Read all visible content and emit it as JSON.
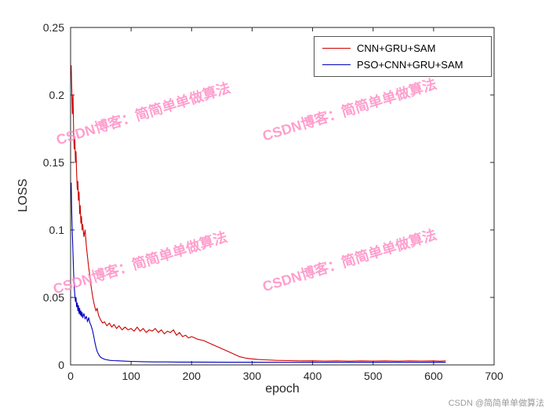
{
  "page": {
    "background": "#ffffff"
  },
  "watermark": {
    "text": "CSDN博客：简简单单做算法",
    "color": "#ff8fc6"
  },
  "credit": {
    "text": "CSDN @简简单单做算法",
    "color": "#9b9b9b"
  },
  "chart_data": {
    "type": "line",
    "title": "",
    "xlabel": "epoch",
    "ylabel": "LOSS",
    "xlim": [
      0,
      700
    ],
    "ylim": [
      0,
      0.25
    ],
    "xticks": [
      0,
      100,
      200,
      300,
      400,
      500,
      600,
      700
    ],
    "yticks": [
      0,
      0.05,
      0.1,
      0.15,
      0.2,
      0.25
    ],
    "ytick_labels": [
      "0",
      "0.05",
      "0.1",
      "0.15",
      "0.2",
      "0.25"
    ],
    "grid": false,
    "axis_color": "#262626",
    "legend": {
      "position": "top-right",
      "entries": [
        {
          "label": "CNN+GRU+SAM",
          "color": "#cd0000"
        },
        {
          "label": "PSO+CNN+GRU+SAM",
          "color": "#0000bb"
        }
      ]
    },
    "series": [
      {
        "name": "CNN+GRU+SAM",
        "color": "#cd0000",
        "points": [
          [
            1,
            0.222
          ],
          [
            2,
            0.205
          ],
          [
            3,
            0.186
          ],
          [
            4,
            0.2
          ],
          [
            5,
            0.172
          ],
          [
            6,
            0.16
          ],
          [
            7,
            0.168
          ],
          [
            8,
            0.15
          ],
          [
            9,
            0.158
          ],
          [
            10,
            0.142
          ],
          [
            11,
            0.13
          ],
          [
            12,
            0.136
          ],
          [
            13,
            0.122
          ],
          [
            14,
            0.128
          ],
          [
            15,
            0.112
          ],
          [
            16,
            0.118
          ],
          [
            17,
            0.105
          ],
          [
            18,
            0.11
          ],
          [
            19,
            0.1
          ],
          [
            20,
            0.104
          ],
          [
            22,
            0.095
          ],
          [
            24,
            0.1
          ],
          [
            26,
            0.088
          ],
          [
            28,
            0.08
          ],
          [
            30,
            0.072
          ],
          [
            32,
            0.066
          ],
          [
            34,
            0.058
          ],
          [
            36,
            0.052
          ],
          [
            38,
            0.047
          ],
          [
            40,
            0.043
          ],
          [
            42,
            0.04
          ],
          [
            44,
            0.042
          ],
          [
            46,
            0.037
          ],
          [
            48,
            0.035
          ],
          [
            50,
            0.033
          ],
          [
            53,
            0.031
          ],
          [
            56,
            0.032
          ],
          [
            60,
            0.029
          ],
          [
            64,
            0.031
          ],
          [
            68,
            0.028
          ],
          [
            72,
            0.03
          ],
          [
            76,
            0.027
          ],
          [
            80,
            0.029
          ],
          [
            85,
            0.026
          ],
          [
            90,
            0.028
          ],
          [
            95,
            0.026
          ],
          [
            100,
            0.027
          ],
          [
            105,
            0.025
          ],
          [
            110,
            0.028
          ],
          [
            115,
            0.025
          ],
          [
            120,
            0.027
          ],
          [
            125,
            0.024
          ],
          [
            130,
            0.026
          ],
          [
            135,
            0.025
          ],
          [
            140,
            0.027
          ],
          [
            145,
            0.024
          ],
          [
            150,
            0.026
          ],
          [
            155,
            0.023
          ],
          [
            160,
            0.025
          ],
          [
            165,
            0.024
          ],
          [
            170,
            0.026
          ],
          [
            175,
            0.022
          ],
          [
            180,
            0.024
          ],
          [
            185,
            0.021
          ],
          [
            190,
            0.022
          ],
          [
            195,
            0.02
          ],
          [
            200,
            0.021
          ],
          [
            210,
            0.019
          ],
          [
            220,
            0.018
          ],
          [
            230,
            0.016
          ],
          [
            240,
            0.014
          ],
          [
            250,
            0.012
          ],
          [
            260,
            0.01
          ],
          [
            270,
            0.008
          ],
          [
            280,
            0.006
          ],
          [
            290,
            0.005
          ],
          [
            300,
            0.0045
          ],
          [
            310,
            0.004
          ],
          [
            320,
            0.0038
          ],
          [
            340,
            0.0034
          ],
          [
            360,
            0.0032
          ],
          [
            380,
            0.003
          ],
          [
            400,
            0.0031
          ],
          [
            420,
            0.0029
          ],
          [
            440,
            0.003
          ],
          [
            460,
            0.0028
          ],
          [
            480,
            0.003
          ],
          [
            500,
            0.0029
          ],
          [
            520,
            0.003
          ],
          [
            540,
            0.0028
          ],
          [
            560,
            0.003
          ],
          [
            580,
            0.0029
          ],
          [
            600,
            0.003
          ],
          [
            610,
            0.0028
          ],
          [
            620,
            0.003
          ]
        ]
      },
      {
        "name": "PSO+CNN+GRU+SAM",
        "color": "#0000bb",
        "points": [
          [
            1,
            0.135
          ],
          [
            2,
            0.112
          ],
          [
            3,
            0.096
          ],
          [
            4,
            0.082
          ],
          [
            5,
            0.068
          ],
          [
            6,
            0.058
          ],
          [
            7,
            0.052
          ],
          [
            8,
            0.047
          ],
          [
            9,
            0.05
          ],
          [
            10,
            0.043
          ],
          [
            11,
            0.046
          ],
          [
            12,
            0.04
          ],
          [
            13,
            0.044
          ],
          [
            14,
            0.038
          ],
          [
            15,
            0.042
          ],
          [
            16,
            0.037
          ],
          [
            17,
            0.04
          ],
          [
            18,
            0.036
          ],
          [
            19,
            0.039
          ],
          [
            20,
            0.035
          ],
          [
            22,
            0.038
          ],
          [
            24,
            0.034
          ],
          [
            26,
            0.036
          ],
          [
            28,
            0.032
          ],
          [
            30,
            0.035
          ],
          [
            32,
            0.031
          ],
          [
            34,
            0.029
          ],
          [
            36,
            0.026
          ],
          [
            38,
            0.022
          ],
          [
            40,
            0.017
          ],
          [
            42,
            0.013
          ],
          [
            44,
            0.01
          ],
          [
            46,
            0.008
          ],
          [
            48,
            0.0065
          ],
          [
            50,
            0.0055
          ],
          [
            53,
            0.0048
          ],
          [
            56,
            0.0042
          ],
          [
            60,
            0.0038
          ],
          [
            65,
            0.0034
          ],
          [
            70,
            0.0032
          ],
          [
            80,
            0.003
          ],
          [
            90,
            0.0028
          ],
          [
            100,
            0.0026
          ],
          [
            120,
            0.0024
          ],
          [
            140,
            0.0022
          ],
          [
            160,
            0.0022
          ],
          [
            180,
            0.0021
          ],
          [
            200,
            0.0021
          ],
          [
            250,
            0.002
          ],
          [
            300,
            0.002
          ],
          [
            350,
            0.0019
          ],
          [
            400,
            0.002
          ],
          [
            450,
            0.0019
          ],
          [
            500,
            0.002
          ],
          [
            550,
            0.0019
          ],
          [
            600,
            0.002
          ],
          [
            620,
            0.002
          ]
        ]
      }
    ]
  }
}
